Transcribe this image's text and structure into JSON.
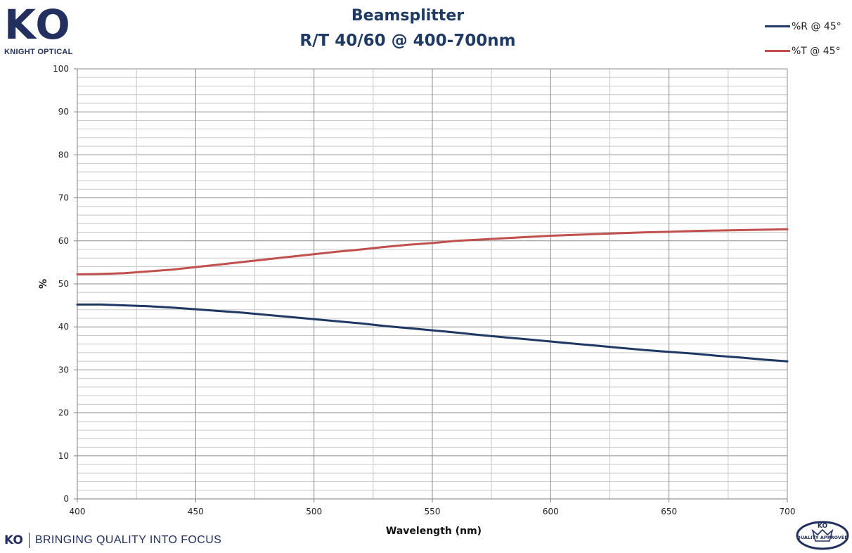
{
  "brand": {
    "logo_mark": "KO",
    "logo_subtitle": "KNIGHT OPTICAL",
    "footer_mark": "KO",
    "footer_tagline": "BRINGING QUALITY INTO FOCUS",
    "badge_mark": "KO",
    "badge_text": "QUALITY APPROVED",
    "color": "#23305f"
  },
  "chart_data": {
    "type": "line",
    "title": "Beamsplitter",
    "subtitle": "R/T 40/60 @ 400-700nm",
    "xlabel": "Wavelength (nm)",
    "ylabel": "%",
    "xlim": [
      400,
      700
    ],
    "ylim": [
      0,
      100
    ],
    "x_ticks": [
      400,
      450,
      500,
      550,
      600,
      650,
      700
    ],
    "y_ticks": [
      0,
      10,
      20,
      30,
      40,
      50,
      60,
      70,
      80,
      90,
      100
    ],
    "x_tick_labels": [
      "400",
      "450",
      "500",
      "550",
      "600",
      "650",
      "700"
    ],
    "y_tick_labels": [
      "0",
      "10",
      "20",
      "30",
      "40",
      "50",
      "60",
      "70",
      "80",
      "90",
      "100"
    ],
    "x_minor_step": 25,
    "y_minor_step": 2,
    "grid": true,
    "legend_position": "top-right",
    "series": [
      {
        "name": "%R @ 45°",
        "color": "#1f3864",
        "x": [
          400,
          410,
          420,
          430,
          440,
          450,
          460,
          470,
          480,
          490,
          500,
          510,
          520,
          530,
          540,
          550,
          560,
          570,
          580,
          590,
          600,
          610,
          620,
          630,
          640,
          650,
          660,
          670,
          680,
          690,
          700
        ],
        "y": [
          45.2,
          45.2,
          45.0,
          44.8,
          44.5,
          44.1,
          43.7,
          43.3,
          42.8,
          42.3,
          41.8,
          41.3,
          40.8,
          40.2,
          39.7,
          39.2,
          38.7,
          38.1,
          37.6,
          37.1,
          36.6,
          36.1,
          35.6,
          35.1,
          34.6,
          34.2,
          33.8,
          33.3,
          32.9,
          32.4,
          32.0
        ]
      },
      {
        "name": "%T @ 45°",
        "color": "#c0504d",
        "x": [
          400,
          410,
          420,
          430,
          440,
          450,
          460,
          470,
          480,
          490,
          500,
          510,
          520,
          530,
          540,
          550,
          560,
          570,
          580,
          590,
          600,
          610,
          620,
          630,
          640,
          650,
          660,
          670,
          680,
          690,
          700
        ],
        "y": [
          52.2,
          52.3,
          52.5,
          52.9,
          53.3,
          53.9,
          54.5,
          55.1,
          55.7,
          56.3,
          56.9,
          57.5,
          58.0,
          58.6,
          59.1,
          59.5,
          60.0,
          60.3,
          60.6,
          60.9,
          61.2,
          61.4,
          61.6,
          61.8,
          62.0,
          62.1,
          62.3,
          62.4,
          62.5,
          62.6,
          62.7
        ]
      }
    ]
  }
}
